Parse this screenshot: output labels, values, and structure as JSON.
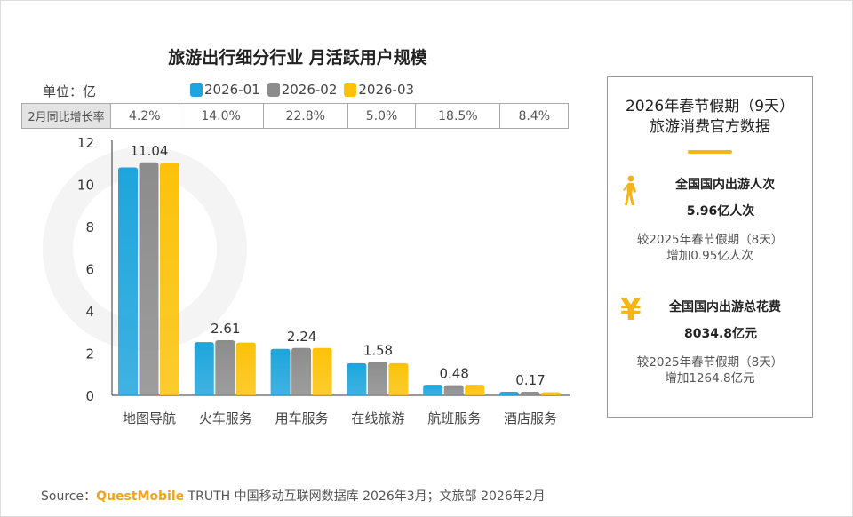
{
  "watermark": "QUEST MOBILE",
  "chart_data": {
    "type": "bar",
    "title": "旅游出行细分行业 月活跃用户规模",
    "unit_label": "单位：亿",
    "categories": [
      "地图导航",
      "火车服务",
      "用车服务",
      "在线旅游",
      "航班服务",
      "酒店服务"
    ],
    "series": [
      {
        "name": "2026-01",
        "color": "#1ea5dc",
        "values": [
          10.8,
          2.52,
          2.2,
          1.52,
          0.5,
          0.17
        ]
      },
      {
        "name": "2026-02",
        "color": "#8c8c8c",
        "values": [
          11.04,
          2.61,
          2.24,
          1.58,
          0.48,
          0.17
        ]
      },
      {
        "name": "2026-03",
        "color": "#fcc20a",
        "values": [
          11.0,
          2.5,
          2.24,
          1.52,
          0.5,
          0.15
        ]
      }
    ],
    "data_labels": [
      "11.04",
      "2.61",
      "2.24",
      "1.58",
      "0.48",
      "0.17"
    ],
    "yticks": [
      "0",
      "2",
      "4",
      "6",
      "8",
      "10",
      "12"
    ],
    "ylim": [
      0,
      12
    ],
    "growth_row": {
      "label": "2月同比增长率",
      "values": [
        "4.2%",
        "14.0%",
        "22.8%",
        "5.0%",
        "18.5%",
        "8.4%"
      ]
    }
  },
  "side": {
    "title1": "2026年春节假期（9天）",
    "title2": "旅游消费官方数据",
    "trips": {
      "icon": "walking-person-icon",
      "label": "全国国内出游人次",
      "value": "5.96亿人次",
      "cmp1": "较2025年春节假期（8天）",
      "cmp2": "增加0.95亿人次"
    },
    "spend": {
      "icon": "yuan-icon",
      "glyph": "¥",
      "label": "全国国内出游总花费",
      "value": "8034.8亿元",
      "cmp1": "较2025年春节假期（8天）",
      "cmp2": "增加1264.8亿元"
    }
  },
  "source": {
    "prefix": "Source：",
    "brand": "QuestMobile",
    "text": " TRUTH 中国移动互联网数据库 2026年3月；文旅部 2026年2月"
  }
}
